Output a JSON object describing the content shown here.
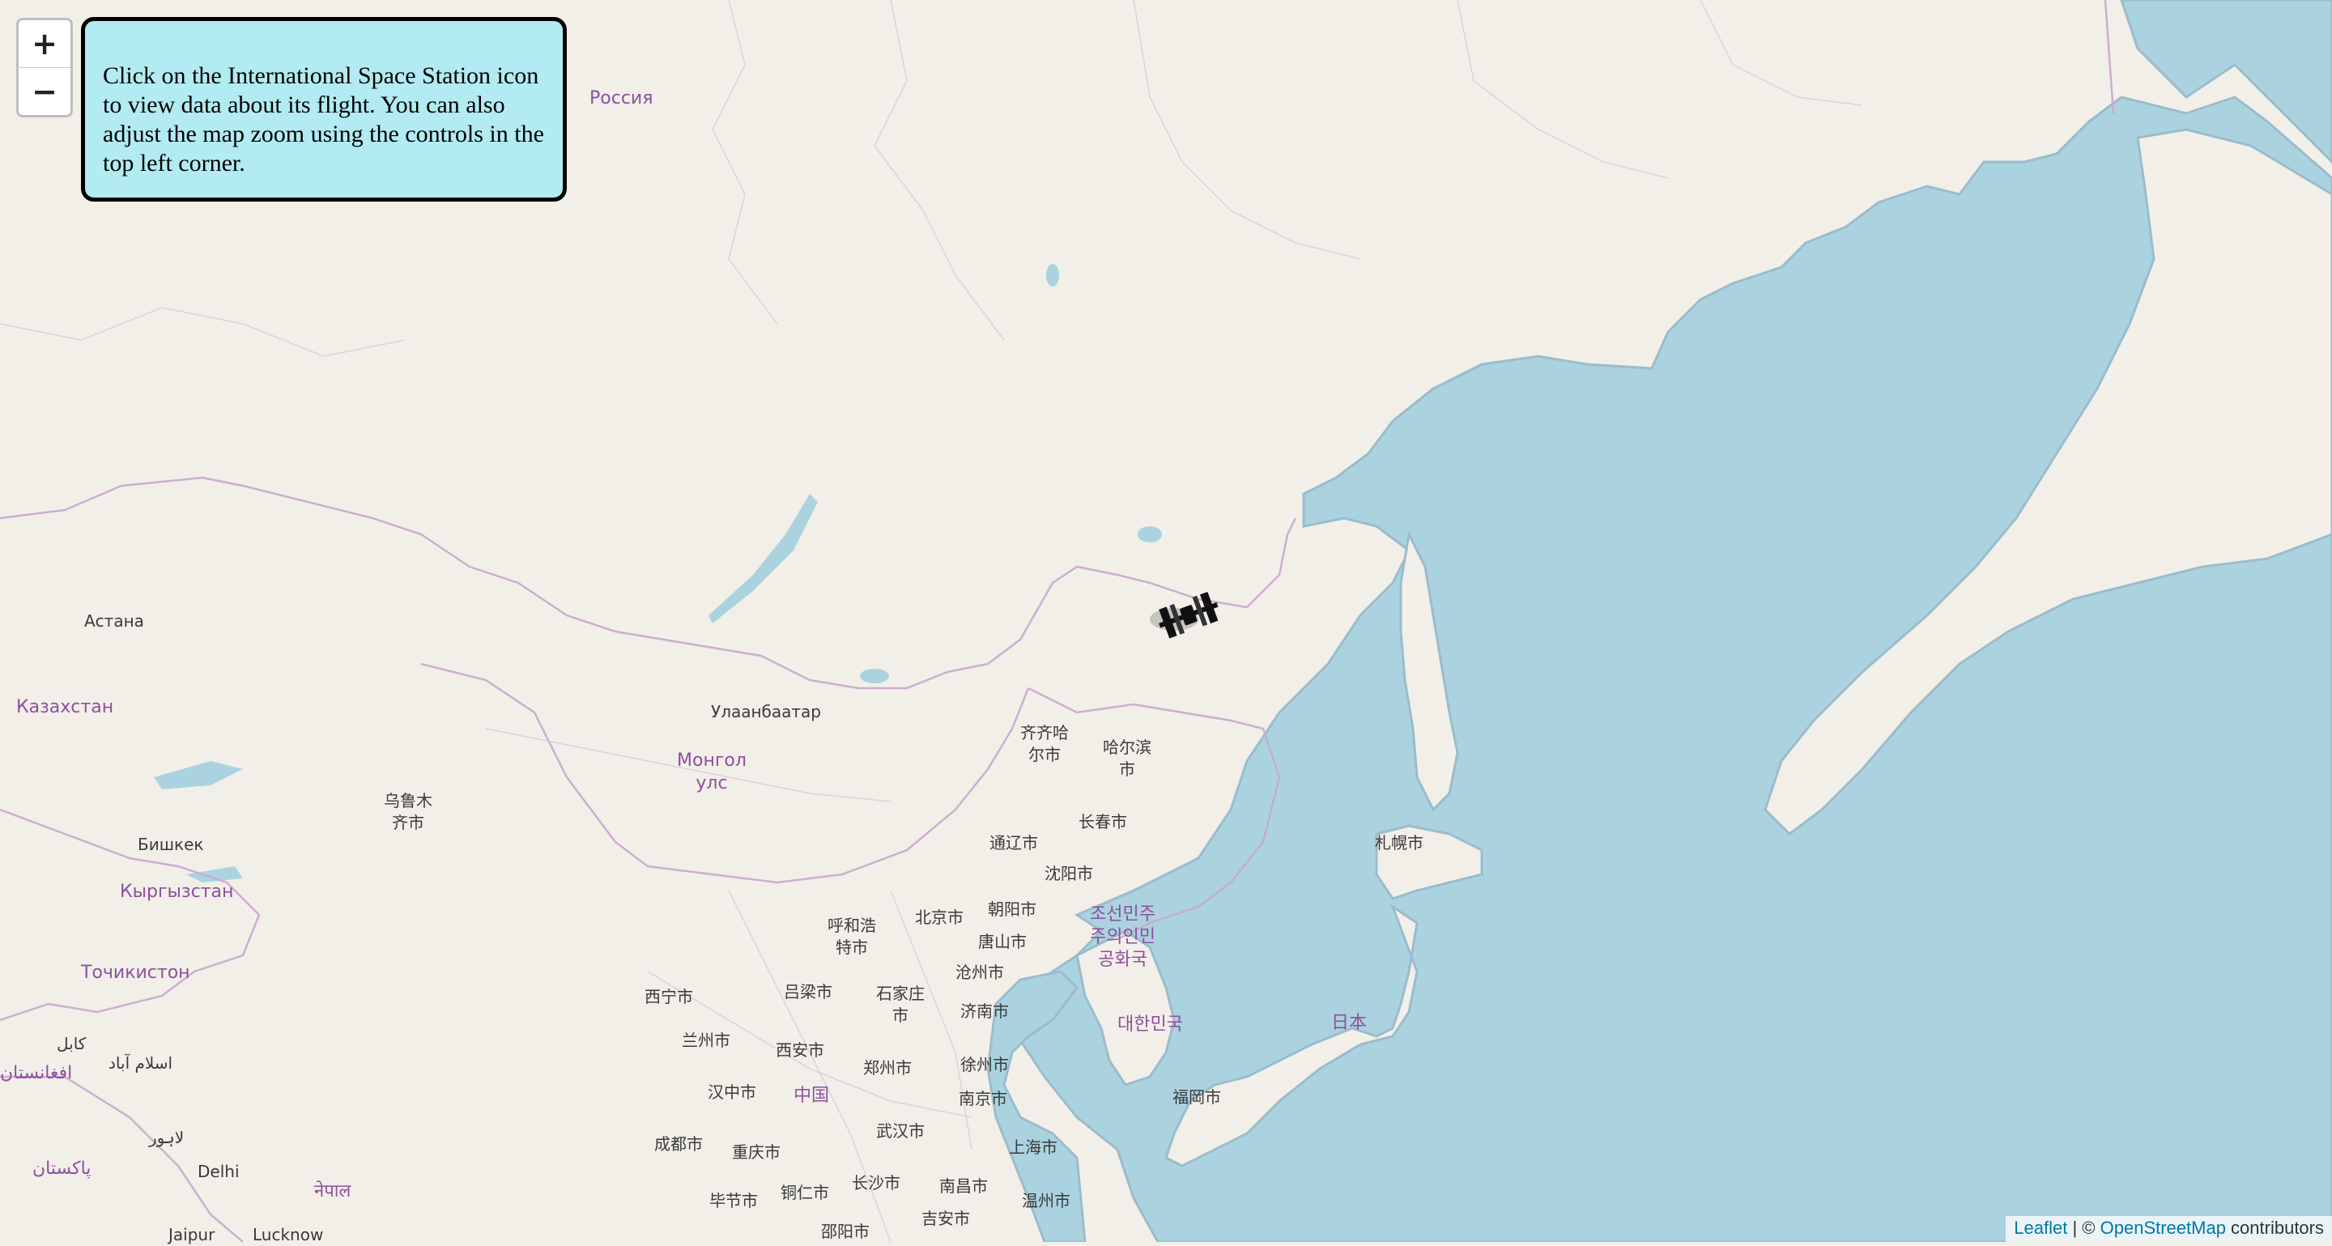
{
  "map": {
    "countries": [
      {
        "id": "russia",
        "text": "Россия"
      },
      {
        "id": "kazakhstan",
        "text": "Казахстан"
      },
      {
        "id": "mongolia",
        "text": "Монгол\nулс"
      },
      {
        "id": "kyrgyzstan",
        "text": "Кыргызстан"
      },
      {
        "id": "tajikistan",
        "text": "Точикистон"
      },
      {
        "id": "afghanistan",
        "text": "افغانستان"
      },
      {
        "id": "pakistan",
        "text": "پاکستان"
      },
      {
        "id": "nepal",
        "text": "नेपाल"
      },
      {
        "id": "china",
        "text": "中国"
      },
      {
        "id": "northkorea",
        "text": "조선민주\n주의인민\n공화국"
      },
      {
        "id": "southkorea",
        "text": "대한민국"
      },
      {
        "id": "japan",
        "text": "日本"
      }
    ],
    "cities": [
      {
        "id": "astana",
        "text": "Астана"
      },
      {
        "id": "ulaanbaatar",
        "text": "Улаанбаатар"
      },
      {
        "id": "urumqi",
        "text": "乌鲁木\n齐市"
      },
      {
        "id": "bishkek",
        "text": "Бишкек"
      },
      {
        "id": "kabul",
        "text": "كابل"
      },
      {
        "id": "islamabad",
        "text": "اسلام آباد"
      },
      {
        "id": "lahore",
        "text": "لاہور"
      },
      {
        "id": "delhi",
        "text": "Delhi"
      },
      {
        "id": "jaipur",
        "text": "Jaipur"
      },
      {
        "id": "lucknow",
        "text": "Lucknow"
      },
      {
        "id": "qiqihar",
        "text": "齐齐哈\n尔市"
      },
      {
        "id": "harbin",
        "text": "哈尔滨\n市"
      },
      {
        "id": "changchun",
        "text": "长春市"
      },
      {
        "id": "tongliao",
        "text": "通辽市"
      },
      {
        "id": "shenyang",
        "text": "沈阳市"
      },
      {
        "id": "hohhot",
        "text": "呼和浩\n特市"
      },
      {
        "id": "beijing",
        "text": "北京市"
      },
      {
        "id": "chaoyang",
        "text": "朝阳市"
      },
      {
        "id": "tangshan",
        "text": "唐山市"
      },
      {
        "id": "xining",
        "text": "西宁市"
      },
      {
        "id": "lanzhou",
        "text": "兰州市"
      },
      {
        "id": "lvliang",
        "text": "吕梁市"
      },
      {
        "id": "shijiazhuang",
        "text": "石家庄\n市"
      },
      {
        "id": "cangzhou",
        "text": "沧州市"
      },
      {
        "id": "jinan",
        "text": "济南市"
      },
      {
        "id": "xian",
        "text": "西安市"
      },
      {
        "id": "zhengzhou",
        "text": "郑州市"
      },
      {
        "id": "xuzhou",
        "text": "徐州市"
      },
      {
        "id": "hanzhong",
        "text": "汉中市"
      },
      {
        "id": "nanjing",
        "text": "南京市"
      },
      {
        "id": "wuhan",
        "text": "武汉市"
      },
      {
        "id": "shanghai",
        "text": "上海市"
      },
      {
        "id": "chengdu",
        "text": "成都市"
      },
      {
        "id": "chongqing",
        "text": "重庆市"
      },
      {
        "id": "bijie",
        "text": "毕节市"
      },
      {
        "id": "tongren",
        "text": "铜仁市"
      },
      {
        "id": "changsha",
        "text": "长沙市"
      },
      {
        "id": "nanchang",
        "text": "南昌市"
      },
      {
        "id": "wenzhou",
        "text": "温州市"
      },
      {
        "id": "shaoyang",
        "text": "邵阳市"
      },
      {
        "id": "jian",
        "text": "吉安市"
      },
      {
        "id": "sapporo",
        "text": "札幌市"
      },
      {
        "id": "fukuoka",
        "text": "福岡市"
      }
    ]
  },
  "zoom": {
    "in_label": "+",
    "out_label": "−"
  },
  "info_box": {
    "text": "Click on the International Space Station icon to view data about its flight. You can also adjust the map zoom using the controls in the top left corner."
  },
  "attribution": {
    "leaflet": "Leaflet",
    "separator": " | © ",
    "osm": "OpenStreetMap",
    "suffix": " contributors"
  },
  "marker": {
    "icon": "iss-icon"
  }
}
